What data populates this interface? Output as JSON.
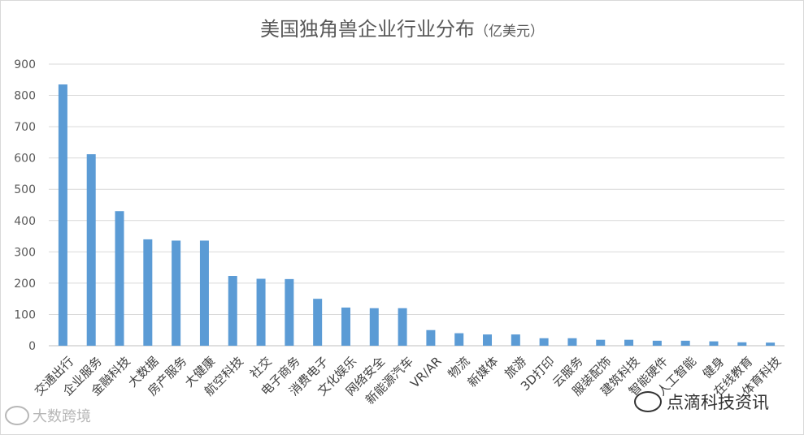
{
  "chart_data": {
    "type": "bar",
    "title": "美国独角兽企业行业分布",
    "unit": "（亿美元）",
    "categories": [
      "交通出行",
      "企业服务",
      "金融科技",
      "大数据",
      "房产服务",
      "大健康",
      "航空科技",
      "社交",
      "电子商务",
      "消费电子",
      "文化娱乐",
      "网络安全",
      "新能源汽车",
      "VR/AR",
      "物流",
      "新媒体",
      "旅游",
      "3D打印",
      "云服务",
      "服装配饰",
      "建筑科技",
      "智能硬件",
      "人工智能",
      "健身",
      "在线教育",
      "体育科技"
    ],
    "values": [
      835,
      612,
      430,
      340,
      336,
      336,
      223,
      214,
      213,
      150,
      122,
      120,
      120,
      50,
      40,
      36,
      36,
      24,
      24,
      19,
      19,
      16,
      16,
      14,
      11,
      10
    ],
    "yticks": [
      0,
      100,
      200,
      300,
      400,
      500,
      600,
      700,
      800,
      900
    ],
    "ylim": [
      0,
      900
    ],
    "grid": true,
    "bar_color": "#5b9bd5"
  },
  "watermarks": {
    "left": "大数跨境",
    "right": "点滴科技资讯"
  }
}
